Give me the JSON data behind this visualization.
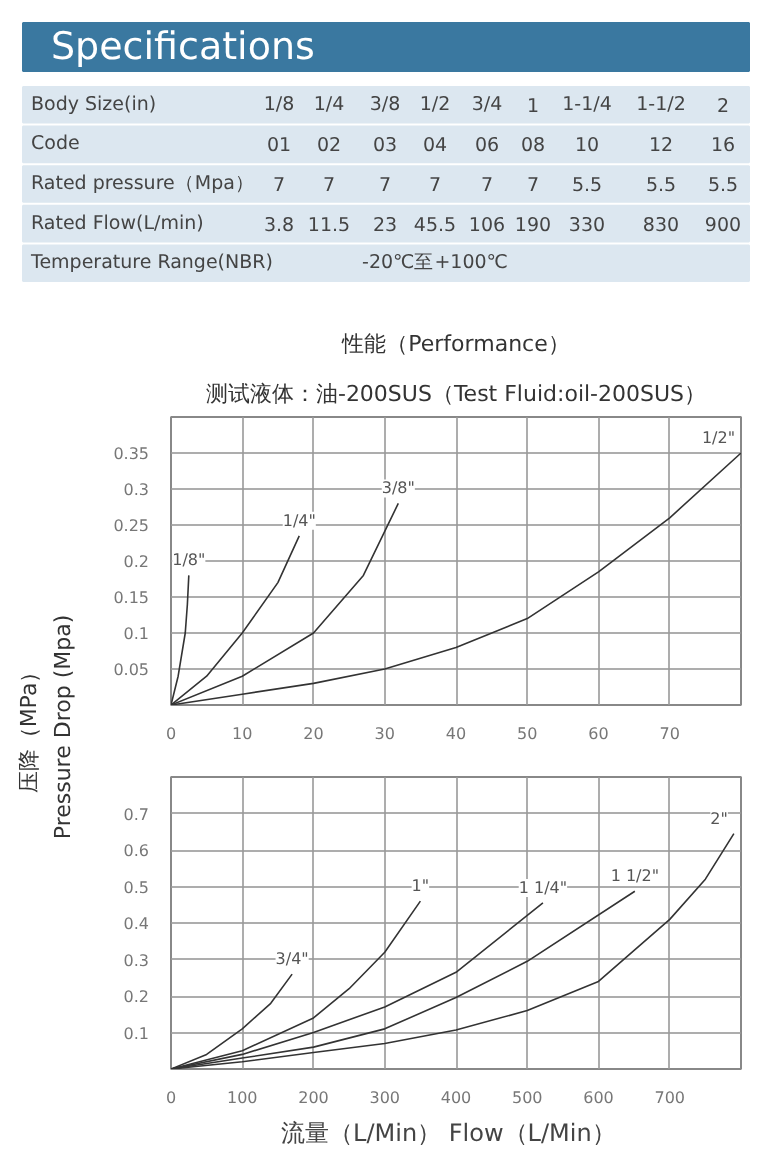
{
  "chart_data": [
    {
      "type": "other",
      "title": "Specifications",
      "y_categories": [
        "Body Size(in)",
        "Code",
        "Rated pressure（Mpa）",
        "Rated Flow(L/min)",
        "Temperature Range(NBR)"
      ],
      "categories": [
        "1/8",
        "1/4",
        "3/8",
        "1/2",
        "3/4",
        "1",
        "1-1/4",
        "1-1/2",
        "2"
      ],
      "cell_labels": [
        [
          "01",
          "02",
          "03",
          "04",
          "06",
          "08",
          "10",
          "12",
          "16"
        ],
        [
          "7",
          "7",
          "7",
          "7",
          "7",
          "7",
          "5.5",
          "5.5",
          "5.5"
        ],
        [
          "3.8",
          "11.5",
          "23",
          "45.5",
          "106",
          "190",
          "330",
          "830",
          "900"
        ],
        [
          "-20℃至+100℃"
        ]
      ]
    },
    {
      "type": "line",
      "title": "性能（Performance）",
      "subtitle": "测试液体：油-200SUS（Test Fluid:oil-200SUS）",
      "xlim": [
        0,
        80
      ],
      "xticks": [
        0,
        10,
        20,
        30,
        40,
        50,
        60,
        70
      ],
      "ylim": [
        0,
        0.4
      ],
      "yticks": [
        0.05,
        0.1,
        0.15,
        0.2,
        0.25,
        0.3,
        0.35
      ],
      "grid": true,
      "series": [
        {
          "name": "1/8\"",
          "color": "#333333",
          "x": [
            0,
            1,
            2,
            2.3,
            2.5
          ],
          "values": [
            0,
            0.04,
            0.1,
            0.14,
            0.18
          ]
        },
        {
          "name": "1/4\"",
          "color": "#333333",
          "x": [
            0,
            5,
            10,
            15,
            18
          ],
          "values": [
            0,
            0.04,
            0.1,
            0.17,
            0.235
          ]
        },
        {
          "name": "3/8\"",
          "color": "#333333",
          "x": [
            0,
            10,
            20,
            27,
            31.9
          ],
          "values": [
            0,
            0.04,
            0.1,
            0.18,
            0.28
          ]
        },
        {
          "name": "1/2\"",
          "color": "#333333",
          "x": [
            0,
            10,
            20,
            30,
            40,
            50,
            60,
            70,
            80
          ],
          "values": [
            0,
            0.015,
            0.03,
            0.05,
            0.08,
            0.12,
            0.185,
            0.26,
            0.35
          ]
        }
      ]
    },
    {
      "type": "line",
      "xlabel": "流量（L/Min）   Flow（L/Min）",
      "ylabel": "压降（MPa）\nPressure Drop (Mpa)",
      "xlim": [
        0,
        800
      ],
      "xticks": [
        0,
        100,
        200,
        300,
        400,
        500,
        600,
        700
      ],
      "ylim": [
        0,
        0.8
      ],
      "yticks": [
        0.1,
        0.2,
        0.3,
        0.4,
        0.5,
        0.6,
        0.7
      ],
      "grid": true,
      "series": [
        {
          "name": "3/4\"",
          "color": "#333333",
          "x": [
            0,
            50,
            100,
            140,
            170
          ],
          "values": [
            0,
            0.04,
            0.11,
            0.18,
            0.26
          ]
        },
        {
          "name": "1\"",
          "color": "#333333",
          "x": [
            0,
            100,
            200,
            250,
            300,
            350
          ],
          "values": [
            0,
            0.05,
            0.14,
            0.22,
            0.32,
            0.46
          ]
        },
        {
          "name": "1 1/4\"",
          "color": "#333333",
          "x": [
            0,
            100,
            200,
            300,
            400,
            522
          ],
          "values": [
            0,
            0.04,
            0.1,
            0.17,
            0.265,
            0.455
          ]
        },
        {
          "name": "1 1/2\"",
          "color": "#333333",
          "x": [
            0,
            100,
            200,
            300,
            400,
            500,
            651
          ],
          "values": [
            0,
            0.03,
            0.06,
            0.11,
            0.196,
            0.295,
            0.487
          ]
        },
        {
          "name": "2\"",
          "color": "#333333",
          "x": [
            0,
            100,
            200,
            300,
            400,
            500,
            600,
            700,
            750,
            790
          ],
          "values": [
            0,
            0.02,
            0.045,
            0.07,
            0.107,
            0.16,
            0.24,
            0.41,
            0.52,
            0.645
          ]
        }
      ]
    }
  ]
}
